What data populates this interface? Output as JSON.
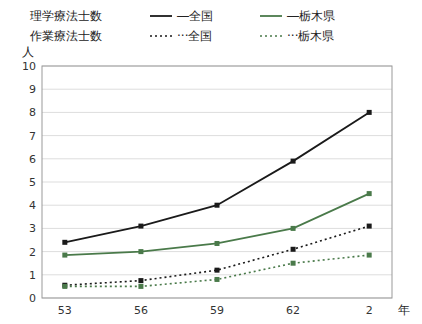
{
  "chart_data": {
    "type": "line",
    "categories": [
      "53",
      "56",
      "59",
      "62",
      "2"
    ],
    "series": [
      {
        "name": "―全国",
        "color": "#1a1a1a",
        "line_style": "solid",
        "marker": "square",
        "values": [
          2.4,
          3.1,
          4.0,
          5.9,
          8.0
        ]
      },
      {
        "name": "―栃木県",
        "color": "#4a7a4a",
        "line_style": "solid",
        "marker": "square",
        "values": [
          1.85,
          2.0,
          2.35,
          3.0,
          4.5
        ]
      },
      {
        "name": "···全国",
        "color": "#1a1a1a",
        "line_style": "dotted",
        "marker": "square",
        "values": [
          0.55,
          0.75,
          1.2,
          2.1,
          3.1
        ]
      },
      {
        "name": "···栃木県",
        "color": "#4a7a4a",
        "line_style": "dotted",
        "marker": "square",
        "values": [
          0.5,
          0.5,
          0.8,
          1.5,
          1.85
        ]
      }
    ],
    "annotations": [
      "理学療法士数",
      "作業療法士数"
    ],
    "xlabel": "年",
    "ylabel": "人",
    "ylim": [
      0,
      10
    ],
    "yticks": [
      0,
      1,
      2,
      3,
      4,
      5,
      6,
      7,
      8,
      9,
      10
    ],
    "grid": true
  }
}
